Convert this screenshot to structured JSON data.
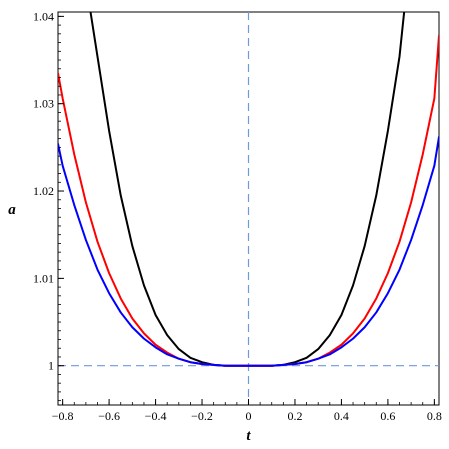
{
  "chart_data": {
    "type": "line",
    "title": "",
    "xlabel": "t",
    "ylabel": "a",
    "xlim": [
      -0.82,
      0.82
    ],
    "ylim": [
      0.9955,
      1.0405
    ],
    "x_ticks": [
      -0.8,
      -0.6,
      -0.4,
      -0.2,
      0,
      0.2,
      0.4,
      0.6,
      0.8
    ],
    "x_tick_labels": [
      "−0.8",
      "−0.6",
      "−0.4",
      "−0.2",
      "0",
      "0.2",
      "0.4",
      "0.6",
      "0.8"
    ],
    "y_ticks": [
      1,
      1.01,
      1.02,
      1.03,
      1.04
    ],
    "y_tick_labels": [
      "1",
      "1.01",
      "1.02",
      "1.03",
      "1.04"
    ],
    "grid": false,
    "legend": "none",
    "reference_lines": [
      {
        "orientation": "horizontal",
        "value": 1,
        "color": "#6f9ad8",
        "style": "dashed"
      },
      {
        "orientation": "vertical",
        "value": 0,
        "color": "#6f9ad8",
        "style": "dashed"
      }
    ],
    "series": [
      {
        "color": "#000000",
        "x": [
          -0.68,
          -0.65,
          -0.6,
          -0.55,
          -0.5,
          -0.45,
          -0.4,
          -0.35,
          -0.3,
          -0.25,
          -0.2,
          -0.15,
          -0.1,
          -0.05,
          0,
          0.05,
          0.1,
          0.15,
          0.2,
          0.25,
          0.3,
          0.35,
          0.4,
          0.45,
          0.5,
          0.55,
          0.6,
          0.65,
          0.67
        ],
        "y": [
          1.0405,
          1.0354,
          1.0269,
          1.0195,
          1.0137,
          1.0092,
          1.0058,
          1.0035,
          1.0019,
          1.0009,
          1.0004,
          1.0001,
          1.0,
          1.0,
          1.0,
          1.0,
          1.0,
          1.0001,
          1.0004,
          1.0009,
          1.0019,
          1.0035,
          1.0058,
          1.0092,
          1.0137,
          1.0195,
          1.0269,
          1.0354,
          1.0405
        ]
      },
      {
        "color": "#ff0000",
        "x": [
          -0.82,
          -0.8,
          -0.75,
          -0.7,
          -0.65,
          -0.6,
          -0.55,
          -0.5,
          -0.45,
          -0.4,
          -0.35,
          -0.3,
          -0.25,
          -0.2,
          -0.15,
          -0.1,
          -0.05,
          0,
          0.05,
          0.1,
          0.15,
          0.2,
          0.25,
          0.3,
          0.35,
          0.4,
          0.45,
          0.5,
          0.55,
          0.6,
          0.65,
          0.7,
          0.75,
          0.8,
          0.82
        ],
        "y": [
          1.0335,
          1.0306,
          1.0242,
          1.0187,
          1.0142,
          1.0106,
          1.0077,
          1.0054,
          1.0037,
          1.0024,
          1.0015,
          1.0008,
          1.0004,
          1.0002,
          1.0001,
          1.0,
          1.0,
          1.0,
          1.0,
          1.0,
          1.0001,
          1.0002,
          1.0004,
          1.0008,
          1.0015,
          1.0024,
          1.0037,
          1.0054,
          1.0077,
          1.0106,
          1.0142,
          1.0187,
          1.0242,
          1.0306,
          1.0378
        ]
      },
      {
        "color": "#0000ff",
        "x": [
          -0.82,
          -0.8,
          -0.75,
          -0.7,
          -0.65,
          -0.6,
          -0.55,
          -0.5,
          -0.45,
          -0.4,
          -0.35,
          -0.3,
          -0.25,
          -0.2,
          -0.15,
          -0.1,
          -0.05,
          0,
          0.05,
          0.1,
          0.15,
          0.2,
          0.25,
          0.3,
          0.35,
          0.4,
          0.45,
          0.5,
          0.55,
          0.6,
          0.65,
          0.7,
          0.75,
          0.8,
          0.82
        ],
        "y": [
          1.0254,
          1.0229,
          1.0184,
          1.0144,
          1.011,
          1.0083,
          1.0061,
          1.0044,
          1.0031,
          1.0021,
          1.0013,
          1.0008,
          1.0004,
          1.0002,
          1.0001,
          1.0,
          1.0,
          1.0,
          1.0,
          1.0,
          1.0001,
          1.0002,
          1.0004,
          1.0008,
          1.0013,
          1.0021,
          1.0031,
          1.0044,
          1.0061,
          1.0083,
          1.011,
          1.0144,
          1.0184,
          1.0229,
          1.0262
        ]
      }
    ]
  }
}
